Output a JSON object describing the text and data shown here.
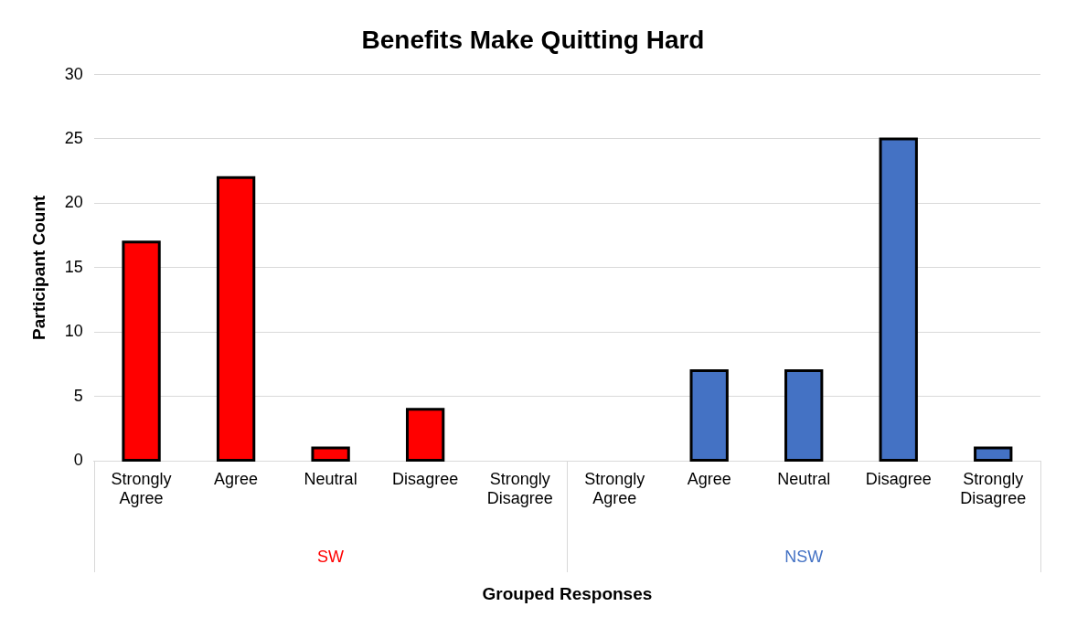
{
  "chart_data": {
    "type": "bar",
    "title": "Benefits Make Quitting Hard",
    "xlabel": "Grouped Responses",
    "ylabel": "Participant Count",
    "categories": [
      "Strongly Agree",
      "Agree",
      "Neutral",
      "Disagree",
      "Strongly Disagree",
      "Strongly Agree",
      "Agree",
      "Neutral",
      "Disagree",
      "Strongly Disagree"
    ],
    "series": [
      {
        "name": "SW",
        "color": "#ff0000",
        "values": [
          17,
          22,
          1,
          4,
          0,
          null,
          null,
          null,
          null,
          null
        ]
      },
      {
        "name": "NSW",
        "color": "#4472c4",
        "values": [
          null,
          null,
          null,
          null,
          null,
          0,
          7,
          7,
          25,
          1
        ]
      }
    ],
    "ylim": [
      0,
      30
    ],
    "yticks": [
      0,
      5,
      10,
      15,
      20,
      25,
      30
    ],
    "grid": "y",
    "legend": false
  }
}
